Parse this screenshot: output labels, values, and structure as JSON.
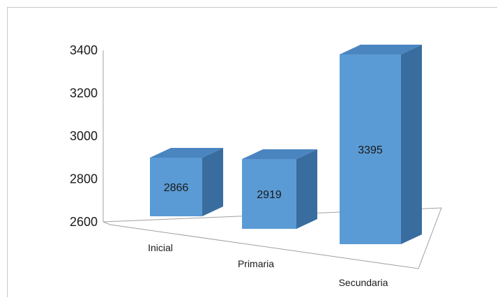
{
  "chart_data": {
    "type": "bar",
    "title": "",
    "xlabel": "",
    "ylabel": "",
    "categories": [
      "Inicial",
      "Primaria",
      "Secundaria"
    ],
    "values": [
      2866,
      2919,
      3395
    ],
    "data_labels": [
      "2866",
      "2919",
      "3395"
    ],
    "yticks": [
      "2600",
      "2800",
      "3000",
      "3200",
      "3400"
    ],
    "ylim": [
      2600,
      3400
    ],
    "style": "3d-column",
    "legend": "none",
    "grid": false,
    "colors": {
      "bar_front": "#5b9bd5",
      "bar_top": "#4a85c0",
      "bar_side": "#3a6d9f",
      "axis": "#a0a0a0"
    }
  }
}
